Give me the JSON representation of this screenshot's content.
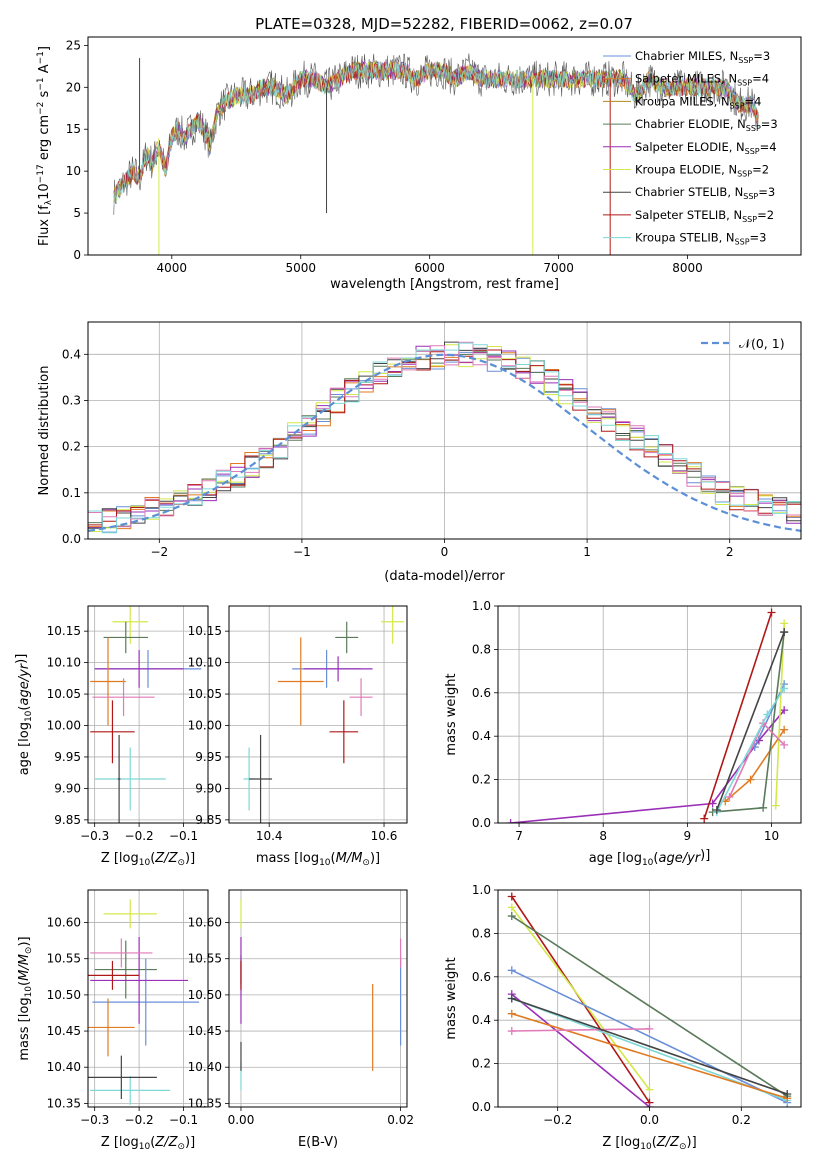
{
  "figure": {
    "title": "PLATE=0328, MJD=52282, FIBERID=0062, z=0.07"
  },
  "labels": {
    "sub_ssp": "SSP",
    "sub_lambda": "λ",
    "sub_sun": "⊙"
  },
  "chart_data": [
    {
      "id": "spectrum",
      "type": "line",
      "xlabel": "wavelength [Angstrom, rest frame]",
      "ylabel": "Flux [f_λ 10^-17 erg cm^-2 s^-1 A^-1]",
      "ylabel_parts": {
        "main": "Flux [f",
        "sub": "λ",
        "mid": "10",
        "exp1": "−17",
        "mid2": " erg cm",
        "exp2": "−2",
        "mid3": " s",
        "exp3": "−1",
        "mid4": " A",
        "exp4": "−1",
        "end": "]"
      },
      "xlim": [
        3350,
        8880
      ],
      "ylim": [
        0,
        26
      ],
      "xticks": [
        4000,
        5000,
        6000,
        7000,
        8000
      ],
      "yticks": [
        0,
        5,
        10,
        15,
        20,
        25
      ],
      "legend": {
        "placement": "right",
        "entries": [
          {
            "model": "Chabrier MILES",
            "n": 3,
            "color": "#6a8fd8"
          },
          {
            "model": "Salpeter MILES",
            "n": 4,
            "color": "#e07b22"
          },
          {
            "model": "Kroupa MILES",
            "n": 4,
            "color": "#b08a1c"
          },
          {
            "model": "Chabrier ELODIE",
            "n": 3,
            "color": "#5a7a5a"
          },
          {
            "model": "Salpeter ELODIE",
            "n": 4,
            "color": "#9a2fb8"
          },
          {
            "model": "Kroupa ELODIE",
            "n": 2,
            "color": "#d4e84a"
          },
          {
            "model": "Chabrier STELIB",
            "n": 3,
            "color": "#444444"
          },
          {
            "model": "Salpeter STELIB",
            "n": 2,
            "color": "#b01818"
          },
          {
            "model": "Kroupa STELIB",
            "n": 3,
            "color": "#7ed8d8"
          }
        ]
      },
      "series_points": [
        [
          3550,
          7
        ],
        [
          3600,
          8
        ],
        [
          3700,
          10
        ],
        [
          3750,
          9
        ],
        [
          3800,
          12
        ],
        [
          3850,
          11
        ],
        [
          3900,
          13
        ],
        [
          3950,
          10
        ],
        [
          4000,
          14
        ],
        [
          4050,
          15
        ],
        [
          4100,
          14
        ],
        [
          4150,
          15
        ],
        [
          4200,
          16
        ],
        [
          4250,
          15
        ],
        [
          4300,
          13
        ],
        [
          4350,
          17
        ],
        [
          4400,
          18
        ],
        [
          4500,
          19
        ],
        [
          4600,
          19
        ],
        [
          4700,
          20
        ],
        [
          4800,
          20
        ],
        [
          4900,
          19
        ],
        [
          5000,
          21
        ],
        [
          5100,
          21
        ],
        [
          5200,
          20
        ],
        [
          5300,
          21
        ],
        [
          5400,
          22
        ],
        [
          5500,
          22
        ],
        [
          5600,
          22
        ],
        [
          5700,
          22
        ],
        [
          5800,
          22
        ],
        [
          5900,
          21
        ],
        [
          6000,
          22
        ],
        [
          6100,
          22
        ],
        [
          6200,
          21
        ],
        [
          6300,
          22
        ],
        [
          6400,
          21
        ],
        [
          6500,
          21
        ],
        [
          6600,
          21
        ],
        [
          6700,
          21
        ],
        [
          6800,
          21
        ],
        [
          6900,
          21
        ],
        [
          7000,
          21
        ],
        [
          7100,
          21
        ],
        [
          7200,
          21
        ],
        [
          7300,
          21
        ],
        [
          7400,
          21
        ],
        [
          7500,
          21
        ],
        [
          7600,
          19
        ],
        [
          7700,
          21
        ],
        [
          7800,
          20
        ],
        [
          7900,
          20
        ],
        [
          8000,
          20
        ],
        [
          8100,
          20
        ],
        [
          8200,
          20
        ],
        [
          8300,
          20
        ],
        [
          8400,
          18
        ],
        [
          8500,
          18
        ],
        [
          8550,
          16
        ]
      ]
    },
    {
      "id": "residuals",
      "type": "bar",
      "xlabel": "(data-model)/error",
      "ylabel": "Normed distribution",
      "xlim": [
        -2.5,
        2.5
      ],
      "ylim": [
        0,
        0.47
      ],
      "xticks": [
        -2,
        -1,
        0,
        1,
        2
      ],
      "yticks": [
        0.0,
        0.1,
        0.2,
        0.3,
        0.4
      ],
      "grid": true,
      "legend": {
        "placement": "top-right",
        "entries": [
          {
            "label": "𝒩(0, 1)",
            "color": "#5b8fd6"
          }
        ]
      },
      "bin_width": 0.1,
      "profile": [
        0.025,
        0.03,
        0.035,
        0.04,
        0.05,
        0.055,
        0.065,
        0.075,
        0.085,
        0.095,
        0.11,
        0.125,
        0.14,
        0.16,
        0.18,
        0.2,
        0.225,
        0.25,
        0.27,
        0.3,
        0.32,
        0.34,
        0.36,
        0.37,
        0.38,
        0.39,
        0.395,
        0.4,
        0.4,
        0.4,
        0.39,
        0.38,
        0.37,
        0.36,
        0.34,
        0.32,
        0.3,
        0.28,
        0.26,
        0.24,
        0.22,
        0.2,
        0.18,
        0.16,
        0.14,
        0.12,
        0.1,
        0.09,
        0.08,
        0.07,
        0.065,
        0.06,
        0.055,
        0.05
      ]
    },
    {
      "id": "age-vs-Z",
      "type": "scatter",
      "xlabel": "Z [log10(Z/Z⊙)]",
      "ylabel": "age [log10(age/yr)]",
      "xlim": [
        -0.315,
        -0.045
      ],
      "ylim": [
        9.845,
        10.19
      ],
      "xticks": [
        -0.3,
        -0.2,
        -0.1
      ],
      "yticks": [
        9.85,
        9.9,
        9.95,
        10.0,
        10.05,
        10.1,
        10.15
      ],
      "grid": true,
      "points": [
        {
          "x": -0.22,
          "xerr": 0.04,
          "y": 10.165,
          "yerr": 0.035,
          "color": "#d4e84a"
        },
        {
          "x": -0.23,
          "xerr": 0.05,
          "y": 10.14,
          "yerr": 0.025,
          "color": "#5a7a5a"
        },
        {
          "x": -0.18,
          "xerr": 0.12,
          "y": 10.09,
          "yerr": 0.03,
          "color": "#6a8fd8"
        },
        {
          "x": -0.2,
          "xerr": 0.1,
          "y": 10.09,
          "yerr": 0.03,
          "color": "#9a2fb8"
        },
        {
          "x": -0.27,
          "xerr": 0.04,
          "y": 10.07,
          "yerr": 0.07,
          "color": "#e07b22"
        },
        {
          "x": -0.235,
          "xerr": 0.07,
          "y": 10.045,
          "yerr": 0.03,
          "color": "#e07ab8"
        },
        {
          "x": -0.26,
          "xerr": 0.05,
          "y": 9.99,
          "yerr": 0.05,
          "color": "#b01818"
        },
        {
          "x": -0.22,
          "xerr": 0.08,
          "y": 9.915,
          "yerr": 0.05,
          "color": "#7ed8d8"
        },
        {
          "x": -0.245,
          "xerr": 0.003,
          "y": 9.915,
          "yerr": 0.07,
          "color": "#444444"
        }
      ]
    },
    {
      "id": "age-vs-mass",
      "type": "scatter",
      "xlabel": "mass [log10(M/M⊙)]",
      "ylabel": "",
      "xlim": [
        10.33,
        10.64
      ],
      "ylim": [
        9.845,
        10.19
      ],
      "xticks": [
        10.4,
        10.6
      ],
      "yticks": [
        9.85,
        9.9,
        9.95,
        10.0,
        10.05,
        10.1,
        10.15
      ],
      "grid": true,
      "points": [
        {
          "x": 10.615,
          "xerr": 0.02,
          "y": 10.165,
          "yerr": 0.035,
          "color": "#d4e84a"
        },
        {
          "x": 10.535,
          "xerr": 0.02,
          "y": 10.14,
          "yerr": 0.025,
          "color": "#5a7a5a"
        },
        {
          "x": 10.5,
          "xerr": 0.06,
          "y": 10.09,
          "yerr": 0.03,
          "color": "#6a8fd8"
        },
        {
          "x": 10.52,
          "xerr": 0.06,
          "y": 10.09,
          "yerr": 0.02,
          "color": "#9a2fb8"
        },
        {
          "x": 10.455,
          "xerr": 0.04,
          "y": 10.07,
          "yerr": 0.07,
          "color": "#e07b22"
        },
        {
          "x": 10.56,
          "xerr": 0.02,
          "y": 10.045,
          "yerr": 0.03,
          "color": "#e07ab8"
        },
        {
          "x": 10.53,
          "xerr": 0.025,
          "y": 9.99,
          "yerr": 0.05,
          "color": "#b01818"
        },
        {
          "x": 10.365,
          "xerr": 0.01,
          "y": 9.915,
          "yerr": 0.05,
          "color": "#7ed8d8"
        },
        {
          "x": 10.385,
          "xerr": 0.02,
          "y": 9.915,
          "yerr": 0.07,
          "color": "#444444"
        }
      ]
    },
    {
      "id": "weight-vs-age",
      "type": "line",
      "xlabel": "age [log10(age/yr)]",
      "ylabel": "mass weight",
      "xlim": [
        6.75,
        10.35
      ],
      "ylim": [
        0,
        1.0
      ],
      "xticks": [
        7,
        8,
        9,
        10
      ],
      "yticks": [
        0.0,
        0.2,
        0.4,
        0.6,
        0.8,
        1.0
      ],
      "grid": true,
      "series": [
        {
          "color": "#9a2fb8",
          "points": [
            [
              6.9,
              0.0
            ],
            [
              9.3,
              0.09
            ],
            [
              9.85,
              0.38
            ],
            [
              10.15,
              0.52
            ]
          ]
        },
        {
          "color": "#6a8fd8",
          "points": [
            [
              9.8,
              0.35
            ],
            [
              10.15,
              0.64
            ]
          ]
        },
        {
          "color": "#e07b22",
          "points": [
            [
              9.45,
              0.1
            ],
            [
              9.75,
              0.2
            ],
            [
              10.15,
              0.43
            ]
          ]
        },
        {
          "color": "#d4e84a",
          "points": [
            [
              10.05,
              0.08
            ],
            [
              10.15,
              0.92
            ]
          ]
        },
        {
          "color": "#5a7a5a",
          "points": [
            [
              9.3,
              0.05
            ],
            [
              9.9,
              0.07
            ],
            [
              10.15,
              0.88
            ]
          ]
        },
        {
          "color": "#b01818",
          "points": [
            [
              9.2,
              0.02
            ],
            [
              10.0,
              0.97
            ]
          ]
        },
        {
          "color": "#e07ab8",
          "points": [
            [
              9.5,
              0.12
            ],
            [
              9.9,
              0.46
            ],
            [
              10.15,
              0.36
            ]
          ]
        },
        {
          "color": "#7ed8d8",
          "points": [
            [
              9.35,
              0.05
            ],
            [
              9.95,
              0.5
            ],
            [
              10.15,
              0.62
            ]
          ]
        },
        {
          "color": "#444444",
          "points": [
            [
              9.35,
              0.06
            ],
            [
              10.15,
              0.88
            ]
          ]
        }
      ]
    },
    {
      "id": "mass-vs-Z",
      "type": "scatter",
      "xlabel": "Z [log10(Z/Z⊙)]",
      "ylabel": "mass [log10(M/M⊙)]",
      "xlim": [
        -0.315,
        -0.045
      ],
      "ylim": [
        10.345,
        10.645
      ],
      "xticks": [
        -0.3,
        -0.2,
        -0.1
      ],
      "yticks": [
        10.35,
        10.4,
        10.45,
        10.5,
        10.55,
        10.6
      ],
      "grid": true,
      "points": [
        {
          "x": -0.22,
          "xerr": 0.06,
          "y": 10.612,
          "yerr": 0.02,
          "color": "#d4e84a"
        },
        {
          "x": -0.23,
          "xerr": 0.07,
          "y": 10.535,
          "yerr": 0.04,
          "color": "#5a7a5a"
        },
        {
          "x": -0.185,
          "xerr": 0.12,
          "y": 10.49,
          "yerr": 0.06,
          "color": "#6a8fd8"
        },
        {
          "x": -0.2,
          "xerr": 0.11,
          "y": 10.52,
          "yerr": 0.06,
          "color": "#9a2fb8"
        },
        {
          "x": -0.27,
          "xerr": 0.06,
          "y": 10.455,
          "yerr": 0.04,
          "color": "#e07b22"
        },
        {
          "x": -0.24,
          "xerr": 0.07,
          "y": 10.558,
          "yerr": 0.02,
          "color": "#e07ab8"
        },
        {
          "x": -0.26,
          "xerr": 0.06,
          "y": 10.527,
          "yerr": 0.02,
          "color": "#b01818"
        },
        {
          "x": -0.22,
          "xerr": 0.09,
          "y": 10.368,
          "yerr": 0.02,
          "color": "#7ed8d8"
        },
        {
          "x": -0.24,
          "xerr": 0.08,
          "y": 10.386,
          "yerr": 0.03,
          "color": "#444444"
        }
      ]
    },
    {
      "id": "mass-vs-ebv",
      "type": "scatter",
      "xlabel": "E(B-V)",
      "ylabel": "",
      "xlim": [
        -0.0015,
        0.0208
      ],
      "ylim": [
        10.345,
        10.645
      ],
      "xticks": [
        0.0,
        0.02
      ],
      "yticks": [
        10.35,
        10.4,
        10.45,
        10.5,
        10.55,
        10.6
      ],
      "grid": true,
      "points": [
        {
          "x": 0.0,
          "xerr": 0,
          "y": 10.612,
          "yerr": 0.02,
          "color": "#d4e84a"
        },
        {
          "x": 0.0,
          "xerr": 0,
          "y": 10.535,
          "yerr": 0.02,
          "color": "#5a7a5a"
        },
        {
          "x": 0.02,
          "xerr": 0,
          "y": 10.49,
          "yerr": 0.06,
          "color": "#6a8fd8"
        },
        {
          "x": 0.0,
          "xerr": 0,
          "y": 10.52,
          "yerr": 0.06,
          "color": "#9a2fb8"
        },
        {
          "x": 0.0165,
          "xerr": 0,
          "y": 10.455,
          "yerr": 0.06,
          "color": "#e07b22"
        },
        {
          "x": 0.02,
          "xerr": 0,
          "y": 10.558,
          "yerr": 0.02,
          "color": "#e07ab8"
        },
        {
          "x": 0.0,
          "xerr": 0,
          "y": 10.527,
          "yerr": 0.02,
          "color": "#b01818"
        },
        {
          "x": 0.0,
          "xerr": 0,
          "y": 10.388,
          "yerr": 0.02,
          "color": "#7ed8d8"
        },
        {
          "x": 0.0,
          "xerr": 0,
          "y": 10.415,
          "yerr": 0.02,
          "color": "#444444"
        }
      ]
    },
    {
      "id": "weight-vs-Z",
      "type": "line",
      "xlabel": "Z [log10(Z/Z⊙)]",
      "ylabel": "mass weight",
      "xlim": [
        -0.33,
        0.33
      ],
      "ylim": [
        0,
        1.0
      ],
      "xticks": [
        -0.2,
        0.0,
        0.2
      ],
      "yticks": [
        0.0,
        0.2,
        0.4,
        0.6,
        0.8,
        1.0
      ],
      "grid": true,
      "series": [
        {
          "color": "#b01818",
          "points": [
            [
              -0.3,
              0.97
            ],
            [
              0.0,
              0.02
            ]
          ]
        },
        {
          "color": "#d4e84a",
          "points": [
            [
              -0.3,
              0.92
            ],
            [
              0.0,
              0.08
            ]
          ]
        },
        {
          "color": "#5a7a5a",
          "points": [
            [
              -0.3,
              0.88
            ],
            [
              0.3,
              0.05
            ]
          ]
        },
        {
          "color": "#6a8fd8",
          "points": [
            [
              -0.3,
              0.63
            ],
            [
              0.3,
              0.02
            ]
          ]
        },
        {
          "color": "#9a2fb8",
          "points": [
            [
              -0.3,
              0.52
            ],
            [
              0.0,
              0.0
            ]
          ]
        },
        {
          "color": "#7ed8d8",
          "points": [
            [
              -0.3,
              0.5
            ],
            [
              0.3,
              0.03
            ]
          ]
        },
        {
          "color": "#e07b22",
          "points": [
            [
              -0.3,
              0.43
            ],
            [
              0.3,
              0.04
            ]
          ]
        },
        {
          "color": "#e07ab8",
          "points": [
            [
              -0.3,
              0.35
            ],
            [
              0.0,
              0.36
            ]
          ]
        },
        {
          "color": "#444444",
          "points": [
            [
              -0.3,
              0.5
            ],
            [
              0.3,
              0.06
            ]
          ]
        }
      ]
    }
  ]
}
